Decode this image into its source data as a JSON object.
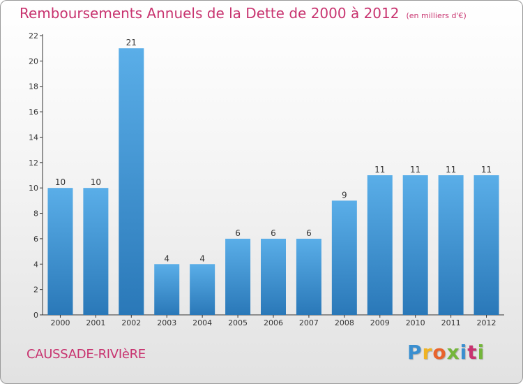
{
  "header": {
    "title": "Remboursements Annuels de la Dette de 2000 à 2012",
    "unit": "(en milliers d'€)"
  },
  "footer": {
    "place": "CAUSSADE-RIVIèRE",
    "brand": "Proxiti"
  },
  "colors": {
    "accent": "#c8336f",
    "bar_light": "#5aaee8",
    "bar_dark": "#2a78b8"
  },
  "chart_data": {
    "type": "bar",
    "title": "Remboursements Annuels de la Dette de 2000 à 2012",
    "xlabel": "",
    "ylabel": "",
    "categories": [
      "2000",
      "2001",
      "2002",
      "2003",
      "2004",
      "2005",
      "2006",
      "2007",
      "2008",
      "2009",
      "2010",
      "2011",
      "2012"
    ],
    "values": [
      10,
      10,
      21,
      4,
      4,
      6,
      6,
      6,
      9,
      11,
      11,
      11,
      11
    ],
    "ylim": [
      0,
      22
    ],
    "yticks": [
      0,
      2,
      4,
      6,
      8,
      10,
      12,
      14,
      16,
      18,
      20,
      22
    ],
    "grid": false,
    "legend": "none"
  }
}
